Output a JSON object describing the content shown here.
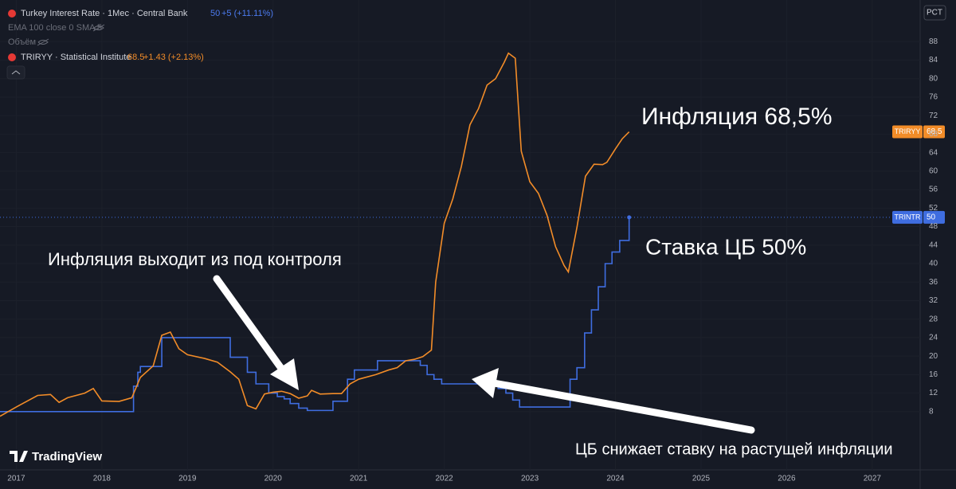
{
  "chart_data": {
    "type": "line",
    "header": {
      "main_symbol": "Turkey Interest Rate · 1Мес · Central Bank",
      "main_change": "+5 (+11.11%)",
      "indicators": "EMA 100 close 0 SMA 5",
      "volume": "Объём",
      "compare_symbol": "TRIRYY · Statistical Institute",
      "compare_change": "+1.43 (+2.13%)"
    },
    "axis_unit": "PCT",
    "watermark": "TradingView",
    "annotations": [
      {
        "text": "Инфляция 68,5%"
      },
      {
        "text": "Ставка ЦБ 50%"
      },
      {
        "text": "Инфляция выходит из под контроля"
      },
      {
        "text": "ЦБ снижает ставку на растущей инфляции"
      }
    ],
    "series": [
      {
        "name": "TRINTR",
        "color": "#3f6de0",
        "step": true,
        "x": [
          2016.81,
          2018.37,
          2018.42,
          2018.45,
          2018.7,
          2019.5,
          2019.7,
          2019.8,
          2019.95,
          2020.05,
          2020.13,
          2020.2,
          2020.3,
          2020.4,
          2020.7,
          2020.87,
          2020.95,
          2021.22,
          2021.72,
          2021.8,
          2021.88,
          2021.97,
          2022.63,
          2022.72,
          2022.8,
          2022.88,
          2023.47,
          2023.55,
          2023.64,
          2023.72,
          2023.8,
          2023.88,
          2023.96,
          2024.05,
          2024.16
        ],
        "values": [
          8,
          13.5,
          16.5,
          17.75,
          24,
          19.75,
          16.5,
          14,
          12,
          11.25,
          10.75,
          9.75,
          8.75,
          8.25,
          10.25,
          15,
          17,
          19,
          18,
          16,
          15,
          14,
          13,
          12,
          10.5,
          9,
          15,
          17.5,
          25,
          30,
          35,
          40,
          42.5,
          45,
          50
        ]
      },
      {
        "name": "TRIRYY",
        "color": "#f28c28",
        "step": false,
        "x": [
          2016.81,
          2017.0,
          2017.25,
          2017.4,
          2017.5,
          2017.6,
          2017.8,
          2017.9,
          2018.0,
          2018.2,
          2018.35,
          2018.45,
          2018.6,
          2018.7,
          2018.8,
          2018.9,
          2019.0,
          2019.2,
          2019.35,
          2019.5,
          2019.6,
          2019.7,
          2019.8,
          2019.9,
          2020.0,
          2020.1,
          2020.2,
          2020.3,
          2020.4,
          2020.45,
          2020.55,
          2020.7,
          2020.8,
          2020.9,
          2021.0,
          2021.2,
          2021.35,
          2021.45,
          2021.55,
          2021.65,
          2021.75,
          2021.85,
          2021.9,
          2022.0,
          2022.1,
          2022.2,
          2022.3,
          2022.4,
          2022.5,
          2022.6,
          2022.7,
          2022.75,
          2022.83,
          2022.9,
          2023.0,
          2023.1,
          2023.2,
          2023.3,
          2023.4,
          2023.45,
          2023.55,
          2023.65,
          2023.75,
          2023.85,
          2023.9,
          2024.0,
          2024.08,
          2024.16
        ],
        "values": [
          7,
          9,
          11.5,
          11.7,
          10,
          11,
          12,
          13,
          10.3,
          10.2,
          11,
          15.4,
          17.9,
          24.5,
          25.2,
          21.6,
          20.3,
          19.5,
          18.7,
          16.6,
          15,
          9.3,
          8.6,
          11.8,
          12.2,
          12.4,
          11.9,
          10.9,
          11.4,
          12.6,
          11.8,
          11.9,
          11.9,
          14,
          15,
          16,
          17,
          17.5,
          19,
          19.3,
          19.9,
          21.3,
          36,
          48.7,
          54,
          61,
          70,
          73.5,
          78.6,
          80,
          83.5,
          85.5,
          84.4,
          64.3,
          57.7,
          55.2,
          50.5,
          43.7,
          39.6,
          38.2,
          47.8,
          58.9,
          61.5,
          61.4,
          61.9,
          64.8,
          67,
          68.5
        ]
      }
    ],
    "xlim": [
      2016.81,
      2027.56
    ],
    "xticks": [
      2017,
      2018,
      2019,
      2020,
      2021,
      2022,
      2023,
      2024,
      2025,
      2026,
      2027
    ],
    "ylim": [
      -4.6,
      97
    ],
    "yticks": [
      8,
      12,
      16,
      20,
      24,
      28,
      32,
      36,
      40,
      44,
      48,
      52,
      56,
      60,
      64,
      68,
      72,
      76,
      80,
      84,
      88
    ],
    "grid": true
  }
}
